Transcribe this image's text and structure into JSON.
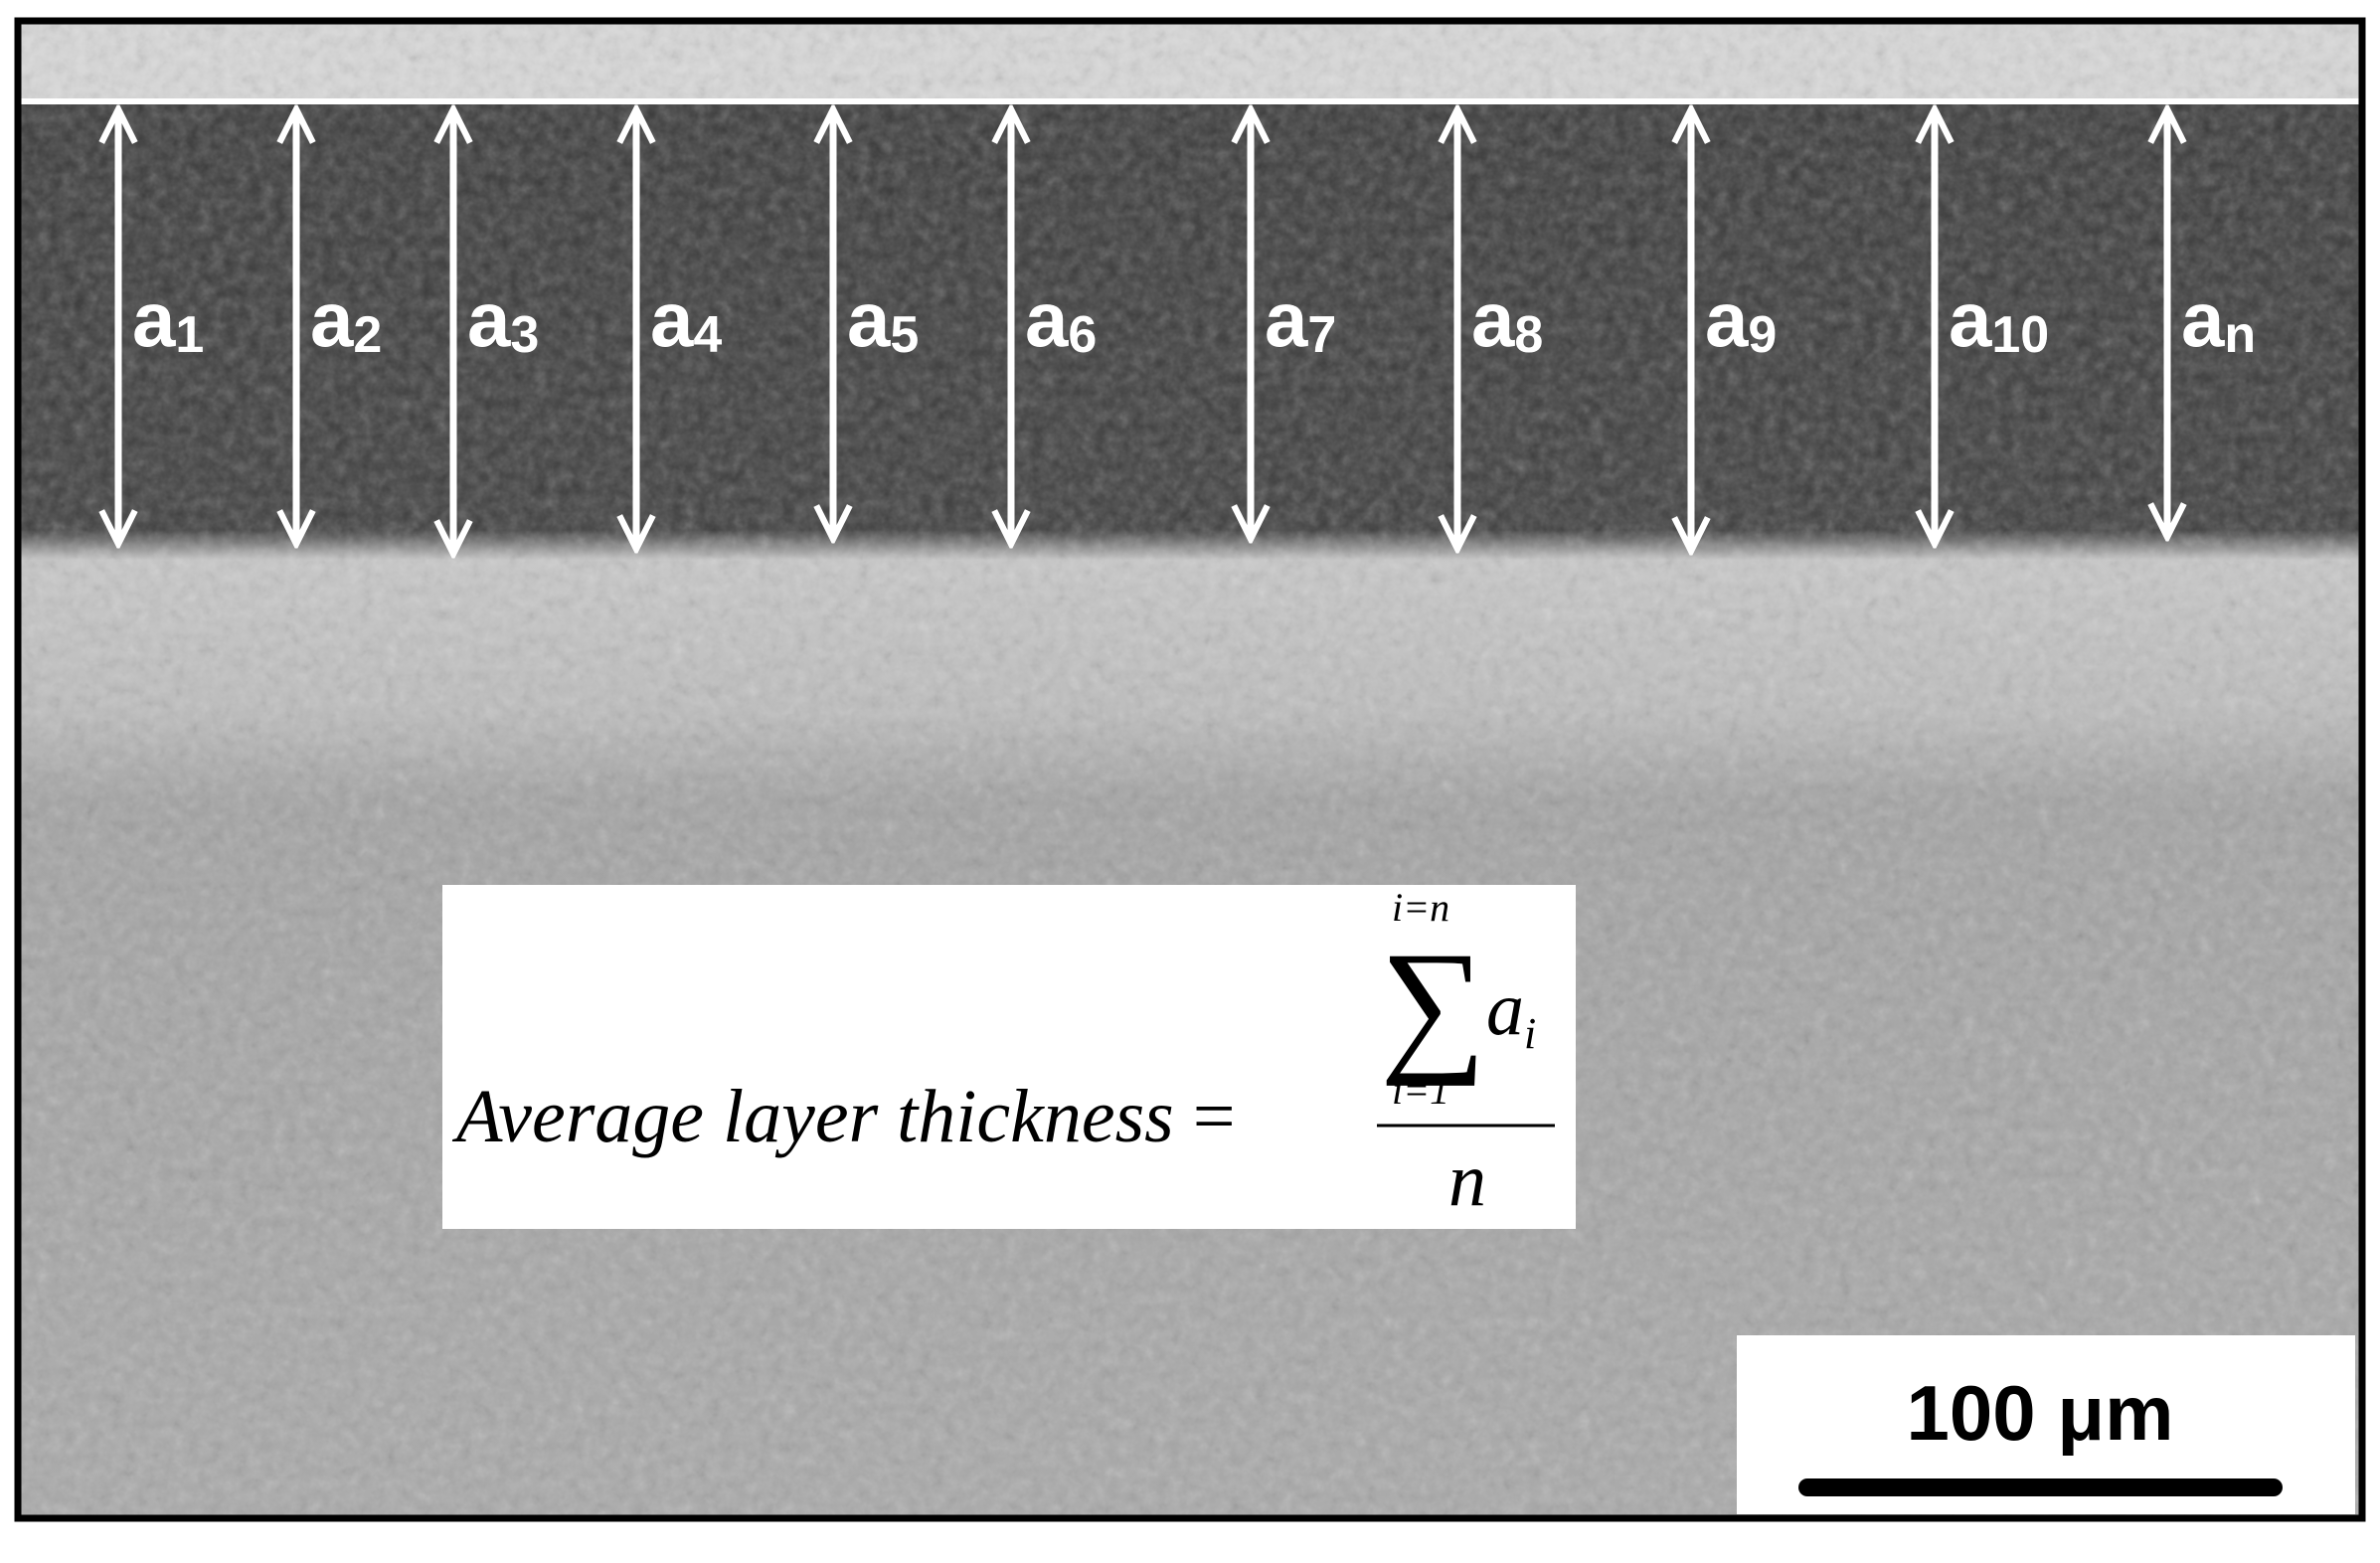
{
  "labels": [
    {
      "base": "a",
      "sub": "1"
    },
    {
      "base": "a",
      "sub": "2"
    },
    {
      "base": "a",
      "sub": "3"
    },
    {
      "base": "a",
      "sub": "4"
    },
    {
      "base": "a",
      "sub": "5"
    },
    {
      "base": "a",
      "sub": "6"
    },
    {
      "base": "a",
      "sub": "7"
    },
    {
      "base": "a",
      "sub": "8"
    },
    {
      "base": "a",
      "sub": "9"
    },
    {
      "base": "a",
      "sub": "10"
    },
    {
      "base": "a",
      "sub": "n"
    }
  ],
  "formula": {
    "lhs": "Average layer thickness",
    "equals": "=",
    "sum_symbol": "∑",
    "upper": "i=n",
    "lower": "i=1",
    "summand": "a",
    "summand_sub": "i",
    "denominator": "n"
  },
  "scale_bar": {
    "label": "100 μm"
  }
}
